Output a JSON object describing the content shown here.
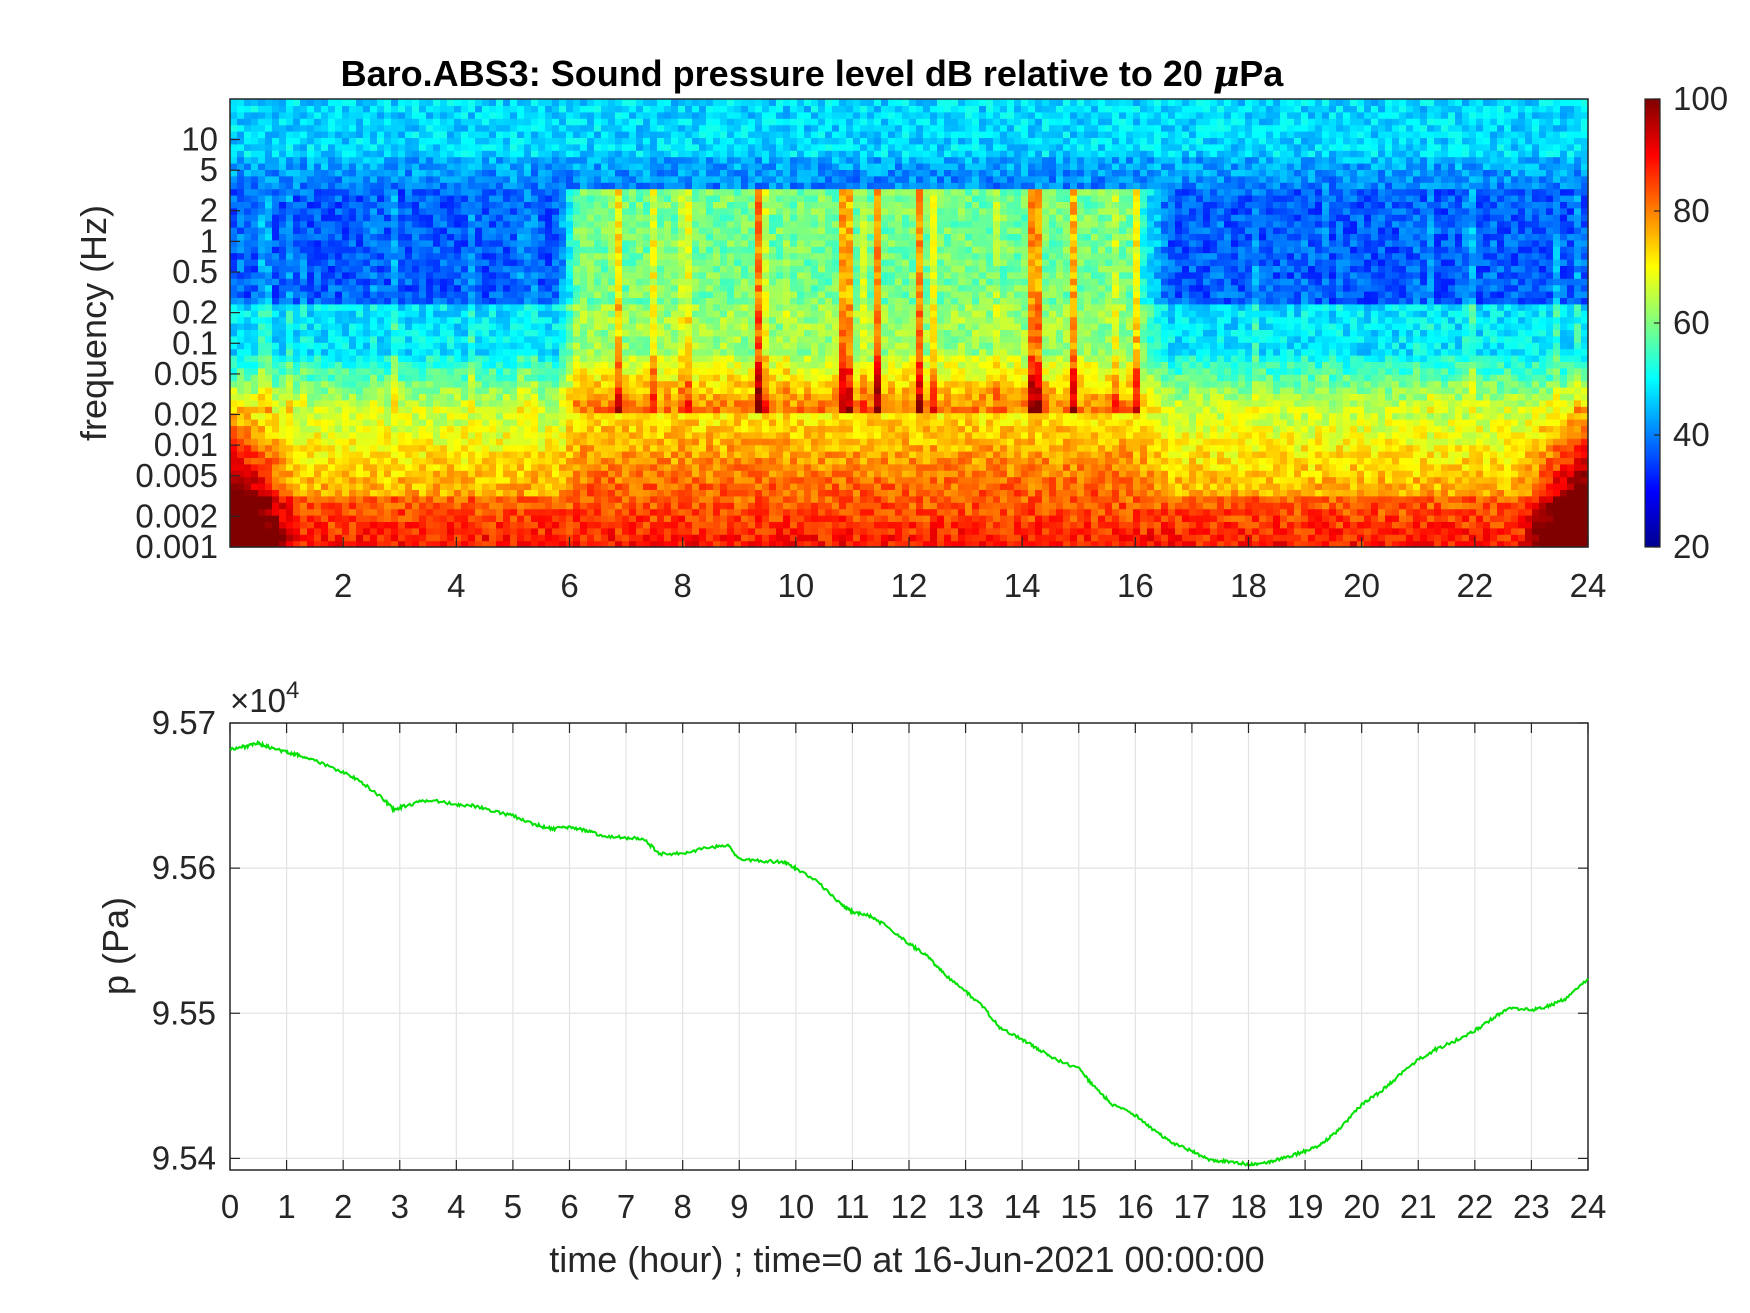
{
  "chart_data": [
    {
      "type": "heatmap",
      "title": "Baro.ABS3: Sound pressure level dB relative to 20 μPa",
      "title_prefix": "Baro.ABS3: Sound pressure level dB relative to 20 ",
      "title_mu": "μ",
      "title_suffix": "Pa",
      "xlabel": "",
      "ylabel": "frequency (Hz)",
      "xlim": [
        0,
        24
      ],
      "ylim": [
        0.001,
        25
      ],
      "yscale": "log",
      "x_ticks": [
        "2",
        "4",
        "6",
        "8",
        "10",
        "12",
        "14",
        "16",
        "18",
        "20",
        "22",
        "24"
      ],
      "x_tick_values": [
        2,
        4,
        6,
        8,
        10,
        12,
        14,
        16,
        18,
        20,
        22,
        24
      ],
      "y_ticks": [
        "0.001",
        "0.002",
        "0.005",
        "0.01",
        "0.02",
        "0.05",
        "0.1",
        "0.2",
        "0.5",
        "1",
        "2",
        "5",
        "10"
      ],
      "y_tick_values": [
        0.001,
        0.002,
        0.005,
        0.01,
        0.02,
        0.05,
        0.1,
        0.2,
        0.5,
        1,
        2,
        5,
        10
      ],
      "colorbar": {
        "colormap": "jet",
        "range": [
          20,
          100
        ],
        "ticks": [
          "20",
          "40",
          "60",
          "80",
          "100"
        ],
        "tick_values": [
          20,
          40,
          60,
          80,
          100
        ]
      },
      "quiet_period_hours": [
        [
          0,
          5.8
        ],
        [
          16.6,
          24
        ]
      ],
      "active_period_hours": [
        5.8,
        16.6
      ]
    },
    {
      "type": "line",
      "title": "",
      "xlabel": "time (hour) ; time=0 at 16-Jun-2021 00:00:00",
      "ylabel": "p (Pa)",
      "xlim": [
        0,
        24
      ],
      "ylim": [
        95392,
        95700
      ],
      "grid": true,
      "exponent_label": "×10",
      "exponent_power": "4",
      "x_ticks": [
        "0",
        "1",
        "2",
        "3",
        "4",
        "5",
        "6",
        "7",
        "8",
        "9",
        "10",
        "11",
        "12",
        "13",
        "14",
        "15",
        "16",
        "17",
        "18",
        "19",
        "20",
        "21",
        "22",
        "23",
        "24"
      ],
      "x_tick_values": [
        0,
        1,
        2,
        3,
        4,
        5,
        6,
        7,
        8,
        9,
        10,
        11,
        12,
        13,
        14,
        15,
        16,
        17,
        18,
        19,
        20,
        21,
        22,
        23,
        24
      ],
      "y_ticks": [
        "9.54",
        "9.55",
        "9.56",
        "9.57"
      ],
      "y_tick_values": [
        95400,
        95500,
        95600,
        95700
      ],
      "series": [
        {
          "color": "#00e000",
          "x": [
            0,
            0.3,
            0.5,
            0.7,
            1,
            1.2,
            1.5,
            2,
            2.3,
            2.7,
            2.9,
            3.1,
            3.5,
            4,
            4.3,
            4.6,
            5,
            5.4,
            5.7,
            6,
            6.3,
            6.6,
            7,
            7.3,
            7.6,
            8,
            8.4,
            8.8,
            9,
            9.4,
            9.8,
            10,
            10.4,
            10.8,
            11,
            11.3,
            11.6,
            12,
            12.3,
            12.6,
            13,
            13.3,
            13.6,
            14,
            14.3,
            14.6,
            15,
            15.3,
            15.6,
            16,
            16.3,
            16.6,
            17,
            17.3,
            17.6,
            18,
            18.3,
            18.6,
            19,
            19.3,
            19.6,
            20,
            20.3,
            20.6,
            21,
            21.3,
            21.6,
            22,
            22.3,
            22.6,
            23,
            23.3,
            23.6,
            24
          ],
          "y": [
            95682,
            95684,
            95686,
            95683,
            95680,
            95678,
            95674,
            95666,
            95660,
            95648,
            95640,
            95643,
            95647,
            95644,
            95643,
            95640,
            95636,
            95630,
            95627,
            95628,
            95626,
            95622,
            95621,
            95620,
            95610,
            95610,
            95614,
            95616,
            95606,
            95605,
            95604,
            95600,
            95590,
            95575,
            95570,
            95567,
            95560,
            95548,
            95540,
            95528,
            95515,
            95505,
            95490,
            95482,
            95475,
            95468,
            95462,
            95448,
            95437,
            95430,
            95420,
            95412,
            95405,
            95399,
            95398,
            95396,
            95397,
            95400,
            95405,
            95410,
            95420,
            95437,
            95445,
            95455,
            95468,
            95475,
            95480,
            95488,
            95496,
            95504,
            95502,
            95505,
            95510,
            95524
          ]
        }
      ]
    }
  ]
}
